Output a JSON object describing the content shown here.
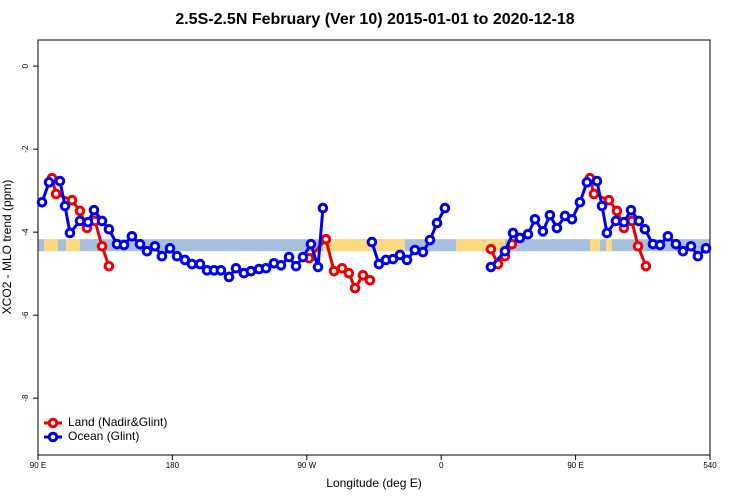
{
  "chart_data": {
    "type": "line",
    "title": "2.5S-2.5N February (Ver 10)   2015-01-01 to 2020-12-18",
    "x_label": "Longitude (deg E)",
    "y_label": "XCO2 - MLO trend (ppm)",
    "xlim": [
      90,
      540
    ],
    "ylim": [
      -9.37,
      0.63
    ],
    "xticks": [
      {
        "value": 90,
        "label": "90 E"
      },
      180,
      {
        "value": 270,
        "label": "90 W"
      },
      {
        "value": 360,
        "label": "0"
      },
      {
        "value": 450,
        "label": "90 E"
      },
      540
    ],
    "yticks": [
      0,
      -2,
      -4,
      -6,
      -8
    ],
    "legend": "bottom-left",
    "band": {
      "range": [
        -4.46,
        -4.17
      ],
      "ocean_color": "#a7bedf",
      "land_color": "#fdd97f",
      "land_segments": [
        [
          94.0,
          103.4
        ],
        [
          108.7,
          118.1
        ],
        [
          280.8,
          335.7
        ],
        [
          369.9,
          402.7
        ],
        [
          459.6,
          466.3
        ],
        [
          470.3,
          474.3
        ]
      ]
    },
    "series": [
      {
        "name": "Land (Nadir&Glint)",
        "color": "#ee0000",
        "x": [
          99.4,
          102.1,
          112.8,
          118.1,
          122.8,
          128.2,
          132.9,
          137.5,
          null,
          271.5,
          282.8,
          288.2,
          293.6,
          298.2,
          302.3,
          307.6,
          312.3,
          null,
          393.3,
          398.0,
          402.7,
          407.4,
          null,
          459.6,
          462.3,
          472.3,
          477.7,
          482.4,
          487.7,
          491.8,
          497.1
        ],
        "values": [
          -2.7,
          -3.08,
          -3.23,
          -3.49,
          -3.9,
          -3.73,
          -4.34,
          -4.82,
          null,
          -4.63,
          -4.17,
          -4.94,
          -4.87,
          -4.99,
          -5.35,
          -5.04,
          -5.16,
          null,
          -4.41,
          -4.77,
          -4.58,
          -4.29,
          null,
          -2.7,
          -3.08,
          -3.23,
          -3.49,
          -3.9,
          -3.73,
          -4.34,
          -4.82
        ]
      },
      {
        "name": "Ocean (Glint)",
        "color": "#0000ee",
        "x": [
          92.7,
          97.4,
          104.7,
          108.1,
          111.4,
          118.1,
          123.5,
          127.5,
          132.9,
          137.5,
          142.9,
          147.6,
          152.9,
          158.3,
          163.0,
          168.3,
          173.0,
          178.4,
          183.1,
          188.4,
          193.1,
          198.5,
          203.2,
          207.9,
          212.5,
          217.9,
          222.6,
          227.9,
          232.6,
          238.0,
          242.7,
          248.0,
          252.7,
          258.1,
          262.8,
          267.4,
          272.8,
          277.5,
          280.8,
          null,
          313.6,
          318.3,
          323.0,
          327.7,
          332.4,
          337.1,
          342.4,
          347.8,
          352.5,
          357.2,
          362.5,
          null,
          393.3,
          402.7,
          408.1,
          412.7,
          418.1,
          422.8,
          428.1,
          432.8,
          437.5,
          442.9,
          447.6,
          452.9,
          457.6,
          464.3,
          467.7,
          471.0,
          477.0,
          482.4,
          487.1,
          492.4,
          496.4,
          501.8,
          506.5,
          511.8,
          517.2,
          521.9,
          527.3,
          531.9,
          537.3
        ],
        "values": [
          -3.28,
          -2.8,
          -2.77,
          -3.37,
          -4.02,
          -3.73,
          -3.76,
          -3.47,
          -3.73,
          -3.93,
          -4.29,
          -4.31,
          -4.1,
          -4.29,
          -4.46,
          -4.34,
          -4.58,
          -4.39,
          -4.58,
          -4.67,
          -4.77,
          -4.77,
          -4.92,
          -4.92,
          -4.92,
          -5.08,
          -4.87,
          -4.99,
          -4.94,
          -4.89,
          -4.87,
          -4.75,
          -4.8,
          -4.6,
          -4.82,
          -4.6,
          -4.29,
          -4.84,
          -3.42,
          null,
          -4.24,
          -4.77,
          -4.67,
          -4.65,
          -4.55,
          -4.67,
          -4.43,
          -4.48,
          -4.19,
          -3.78,
          -3.42,
          null,
          -4.84,
          -4.46,
          -4.02,
          -4.14,
          -4.05,
          -3.69,
          -3.98,
          -3.59,
          -3.9,
          -3.61,
          -3.69,
          -3.28,
          -2.8,
          -2.77,
          -3.37,
          -4.02,
          -3.73,
          -3.76,
          -3.47,
          -3.73,
          -3.93,
          -4.29,
          -4.31,
          -4.1,
          -4.29,
          -4.46,
          -4.34,
          -4.58,
          -4.39
        ]
      }
    ]
  }
}
